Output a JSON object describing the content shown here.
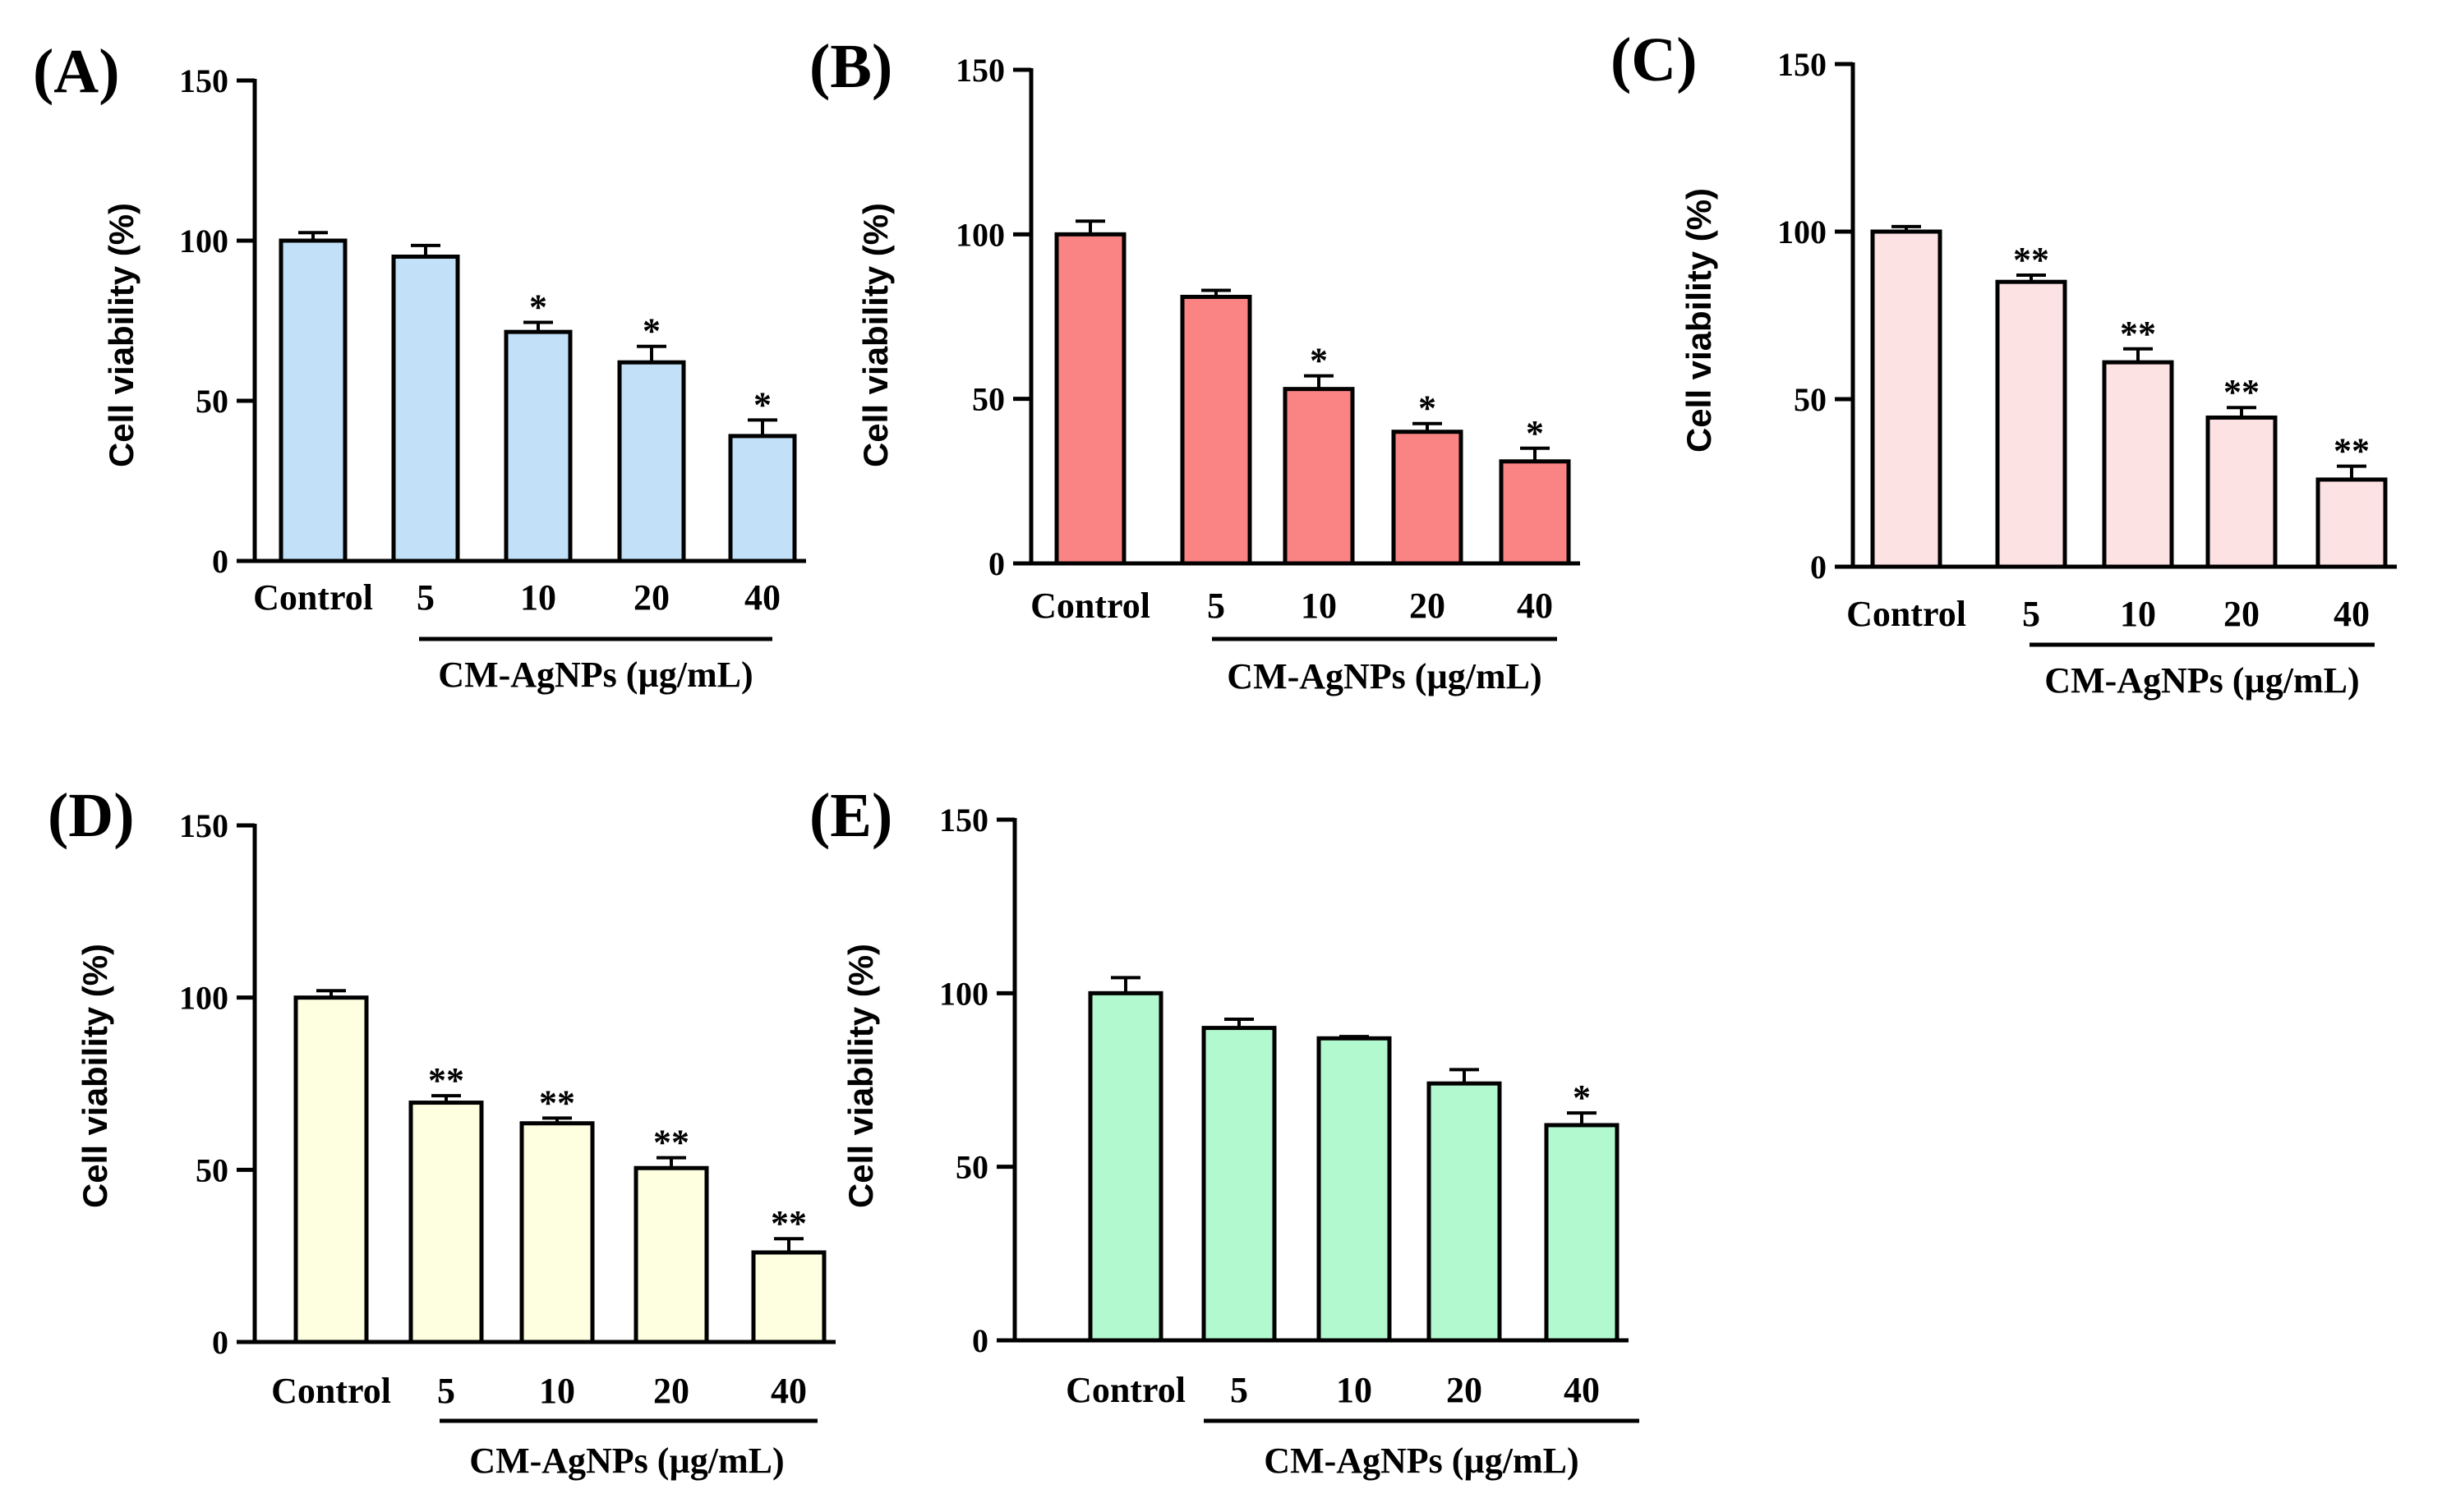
{
  "chart_data": [
    {
      "panel": "(A)",
      "type": "bar",
      "categories": [
        "Control",
        "5",
        "10",
        "20",
        "40"
      ],
      "values": [
        100,
        95,
        71.5,
        62,
        39
      ],
      "errors": [
        2.5,
        3.5,
        3,
        5,
        5
      ],
      "significance": [
        "",
        "",
        "*",
        "*",
        "*"
      ],
      "ylabel": "Cell viability (%)",
      "group_label": "CM-AgNPs (µg/mL)",
      "yticks": [
        "0",
        "50",
        "100",
        "150"
      ],
      "ylim": [
        0,
        150
      ],
      "color": "#c2e0f7"
    },
    {
      "panel": "(B)",
      "type": "bar",
      "categories": [
        "Control",
        "5",
        "10",
        "20",
        "40"
      ],
      "values": [
        100,
        81,
        53,
        40,
        31
      ],
      "errors": [
        4,
        2,
        4,
        2.5,
        4
      ],
      "significance": [
        "",
        "",
        "*",
        "*",
        "*"
      ],
      "ylabel": "Cell  viability (%)",
      "group_label": "CM-AgNPs (µg/mL)",
      "yticks": [
        "0",
        "50",
        "100",
        "150"
      ],
      "ylim": [
        0,
        150
      ],
      "color": "#fa8383"
    },
    {
      "panel": "(C)",
      "type": "bar",
      "categories": [
        "Control",
        "5",
        "10",
        "20",
        "40"
      ],
      "values": [
        100,
        85,
        61,
        44.5,
        26
      ],
      "errors": [
        1.5,
        2,
        4,
        3,
        4
      ],
      "significance": [
        "",
        "**",
        "**",
        "**",
        "**"
      ],
      "ylabel": "Cell  viability  (%)",
      "group_label": "CM-AgNPs (µg/mL)",
      "yticks": [
        "0",
        "50",
        "100",
        "150"
      ],
      "ylim": [
        0,
        150
      ],
      "color": "#fde2e4"
    },
    {
      "panel": "(D)",
      "type": "bar",
      "categories": [
        "Control",
        "5",
        "10",
        "20",
        "40"
      ],
      "values": [
        100,
        69.5,
        63.5,
        50.5,
        26
      ],
      "errors": [
        2,
        2,
        1.5,
        3,
        4
      ],
      "significance": [
        "",
        "**",
        "**",
        "**",
        "**"
      ],
      "ylabel": "Cell viability (%)",
      "group_label": "CM-AgNPs (µg/mL)",
      "yticks": [
        "0",
        "50",
        "100",
        "150"
      ],
      "ylim": [
        0,
        150
      ],
      "color": "#fefee0"
    },
    {
      "panel": "(E)",
      "type": "bar",
      "categories": [
        "Control",
        "5",
        "10",
        "20",
        "40"
      ],
      "values": [
        100,
        90,
        87,
        74,
        62
      ],
      "errors": [
        4.5,
        2.5,
        0.5,
        4,
        3.5
      ],
      "significance": [
        "",
        "",
        "",
        "",
        "*"
      ],
      "ylabel": "Cell viability (%)",
      "group_label": "CM-AgNPs (µg/mL)",
      "yticks": [
        "0",
        "50",
        "100",
        "150"
      ],
      "ylim": [
        0,
        150
      ],
      "color": "#b3f9cf"
    }
  ]
}
